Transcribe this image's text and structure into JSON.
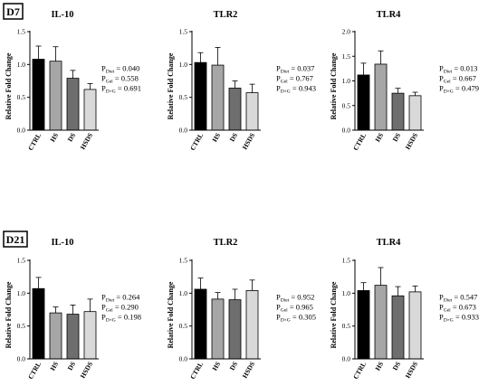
{
  "rows": [
    {
      "label": "D7",
      "charts": [
        {
          "type": "bar",
          "title": "IL-10",
          "ylabel": "Relative Fold Change",
          "categories": [
            "CTRL",
            "HS",
            "DS",
            "HSDS"
          ],
          "ylim": [
            0,
            1.5
          ],
          "yticks": [
            "0.0",
            "0.5",
            "1.0",
            "1.5"
          ],
          "series": [
            {
              "values": [
                1.08,
                1.05,
                0.79,
                0.62
              ],
              "errors": [
                0.2,
                0.22,
                0.12,
                0.09
              ]
            }
          ],
          "pvalues": [
            {
              "prefix": "P",
              "sub": "Diet",
              "value": " = 0.040"
            },
            {
              "prefix": "P",
              "sub": "Gel",
              "value": " = 0.558"
            },
            {
              "prefix": "P",
              "sub": "D×G",
              "value": " = 0.691"
            }
          ]
        },
        {
          "type": "bar",
          "title": "TLR2",
          "ylabel": "Relative Fold Change",
          "categories": [
            "CTRL",
            "HS",
            "DS",
            "HSDS"
          ],
          "ylim": [
            0,
            1.5
          ],
          "yticks": [
            "0.0",
            "0.5",
            "1.0",
            "1.5"
          ],
          "series": [
            {
              "values": [
                1.03,
                0.99,
                0.64,
                0.57
              ],
              "errors": [
                0.15,
                0.27,
                0.11,
                0.13
              ]
            }
          ],
          "pvalues": [
            {
              "prefix": "P",
              "sub": "Diet",
              "value": " = 0.037"
            },
            {
              "prefix": "P",
              "sub": "Gel",
              "value": " = 0.767"
            },
            {
              "prefix": "P",
              "sub": "D×G",
              "value": " = 0.943"
            }
          ]
        },
        {
          "type": "bar",
          "title": "TLR4",
          "ylabel": "Relative Fold Change",
          "categories": [
            "CTRL",
            "HS",
            "DS",
            "HSDS"
          ],
          "ylim": [
            0,
            2.0
          ],
          "yticks": [
            "0.0",
            "0.5",
            "1.0",
            "1.5",
            "2.0"
          ],
          "series": [
            {
              "values": [
                1.12,
                1.34,
                0.75,
                0.7
              ],
              "errors": [
                0.24,
                0.27,
                0.1,
                0.07
              ]
            }
          ],
          "pvalues": [
            {
              "prefix": "P",
              "sub": "Diet",
              "value": " = 0.013"
            },
            {
              "prefix": "P",
              "sub": "Gel",
              "value": " = 0.667"
            },
            {
              "prefix": "P",
              "sub": "D×G",
              "value": " = 0.479"
            }
          ]
        }
      ]
    },
    {
      "label": "D21",
      "charts": [
        {
          "type": "bar",
          "title": "IL-10",
          "ylabel": "Relative Fold Change",
          "categories": [
            "CTRL",
            "HS",
            "DS",
            "HSDS"
          ],
          "ylim": [
            0,
            1.5
          ],
          "yticks": [
            "0.0",
            "0.5",
            "1.0",
            "1.5"
          ],
          "series": [
            {
              "values": [
                1.07,
                0.7,
                0.68,
                0.72
              ],
              "errors": [
                0.17,
                0.09,
                0.14,
                0.19
              ]
            }
          ],
          "pvalues": [
            {
              "prefix": "P",
              "sub": "Diet",
              "value": " = 0.264"
            },
            {
              "prefix": "P",
              "sub": "Gel",
              "value": " = 0.290"
            },
            {
              "prefix": "P",
              "sub": "D×G",
              "value": " = 0.198"
            }
          ]
        },
        {
          "type": "bar",
          "title": "TLR2",
          "ylabel": "Relative Fold Change",
          "categories": [
            "CTRL",
            "HS",
            "DS",
            "HSDS"
          ],
          "ylim": [
            0,
            1.5
          ],
          "yticks": [
            "0.0",
            "0.5",
            "1.0",
            "1.5"
          ],
          "series": [
            {
              "values": [
                1.06,
                0.91,
                0.9,
                1.04
              ],
              "errors": [
                0.17,
                0.1,
                0.16,
                0.16
              ]
            }
          ],
          "pvalues": [
            {
              "prefix": "P",
              "sub": "Diet",
              "value": " = 0.952"
            },
            {
              "prefix": "P",
              "sub": "Gel",
              "value": " = 0.965"
            },
            {
              "prefix": "P",
              "sub": "D×G",
              "value": " = 0.305"
            }
          ]
        },
        {
          "type": "bar",
          "title": "TLR4",
          "ylabel": "Relative Fold Change",
          "categories": [
            "CTRL",
            "HS",
            "DS",
            "HSDS"
          ],
          "ylim": [
            0,
            1.5
          ],
          "yticks": [
            "0.0",
            "0.5",
            "1.0",
            "1.5"
          ],
          "series": [
            {
              "values": [
                1.04,
                1.12,
                0.96,
                1.02
              ],
              "errors": [
                0.12,
                0.27,
                0.14,
                0.09
              ]
            }
          ],
          "pvalues": [
            {
              "prefix": "P",
              "sub": "Diet",
              "value": " = 0.547"
            },
            {
              "prefix": "P",
              "sub": "Gel",
              "value": " = 0.673"
            },
            {
              "prefix": "P",
              "sub": "D×G",
              "value": " = 0.933"
            }
          ]
        }
      ]
    }
  ],
  "bar_colors": [
    "#000000",
    "#a6a6a6",
    "#6e6e6e",
    "#d9d9d9"
  ]
}
